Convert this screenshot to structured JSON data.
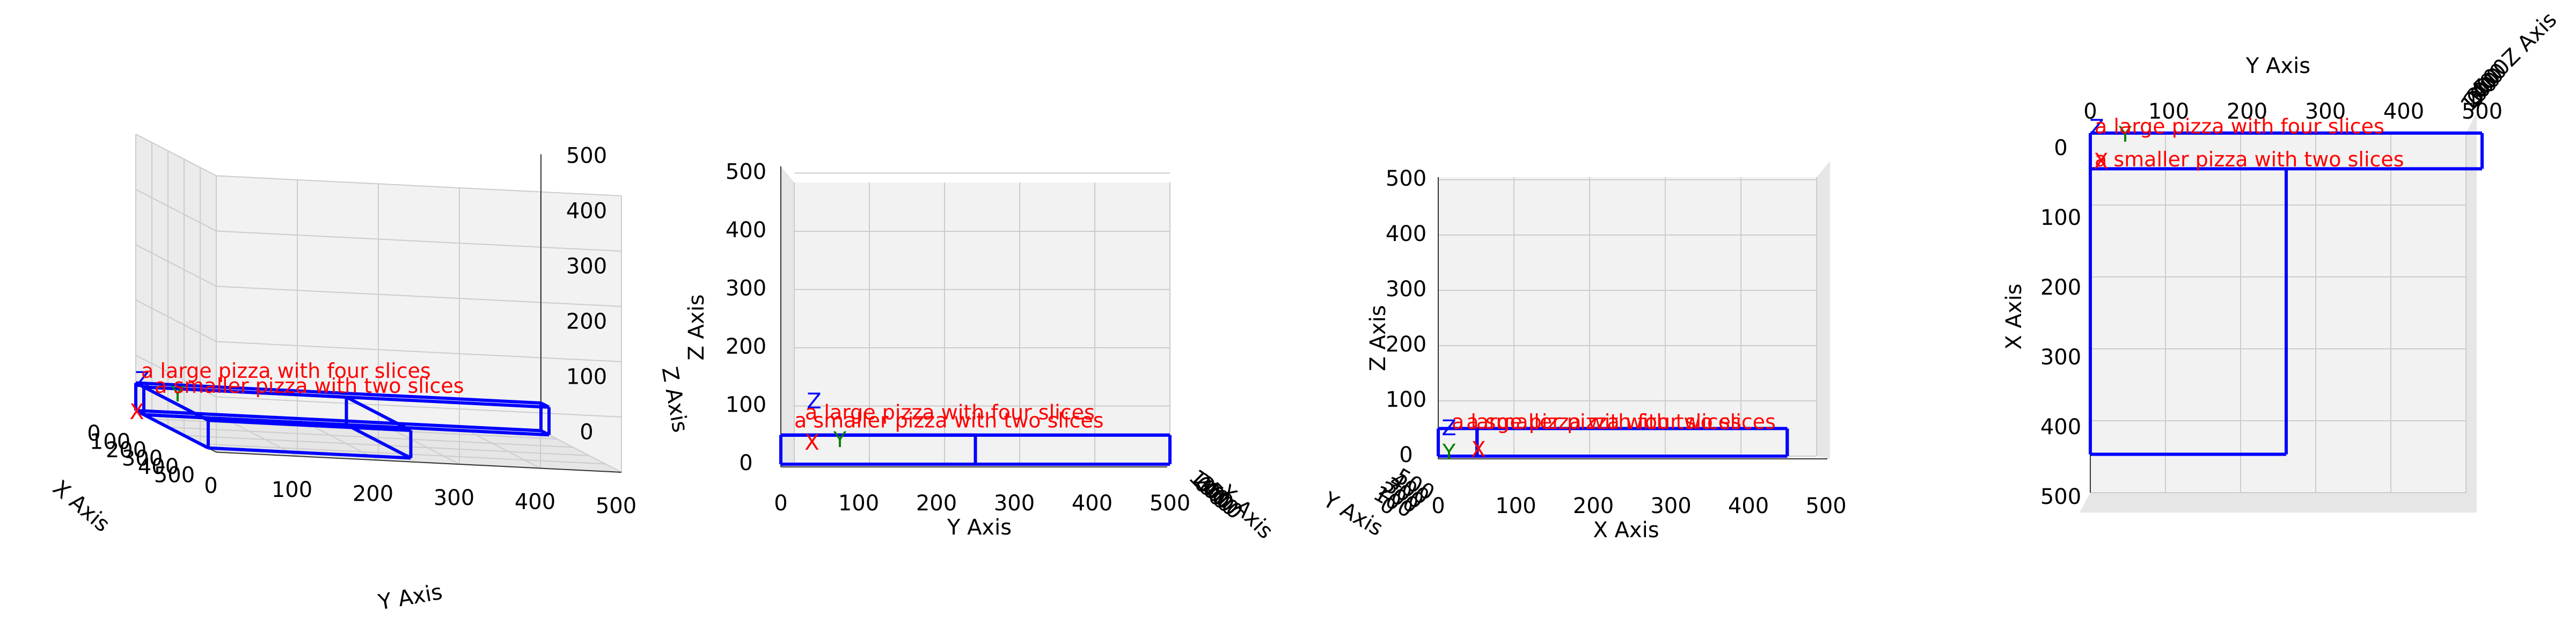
{
  "chart_data": {
    "type": "3d-boxes",
    "title": "",
    "xlabel": "X Axis",
    "ylabel": "Y Axis",
    "zlabel": "Z Axis",
    "xlim": [
      0,
      500
    ],
    "ylim": [
      0,
      500
    ],
    "zlim": [
      0,
      500
    ],
    "ticks": [
      "0",
      "100",
      "200",
      "300",
      "400",
      "500"
    ],
    "axis_markers": [
      "X",
      "Y",
      "Z"
    ],
    "colors": {
      "box": "#0000ff",
      "annotation": "#ff0000",
      "x_marker": "#ff0000",
      "y_marker": "#008000",
      "z_marker": "#0000ff"
    },
    "grid": true,
    "boxes": [
      {
        "label": "a large pizza with four slices",
        "x": [
          0,
          50
        ],
        "y": [
          0,
          500
        ],
        "z": [
          0,
          50
        ]
      },
      {
        "label": "a smaller pizza with two slices",
        "x": [
          50,
          450
        ],
        "y": [
          0,
          250
        ],
        "z": [
          0,
          50
        ]
      }
    ],
    "views": [
      {
        "name": "perspective",
        "elev": 20,
        "azim": -100
      },
      {
        "name": "front",
        "elev": 0,
        "azim": 0
      },
      {
        "name": "side",
        "elev": 0,
        "azim": -90
      },
      {
        "name": "top",
        "elev": 90,
        "azim": 0
      }
    ]
  }
}
